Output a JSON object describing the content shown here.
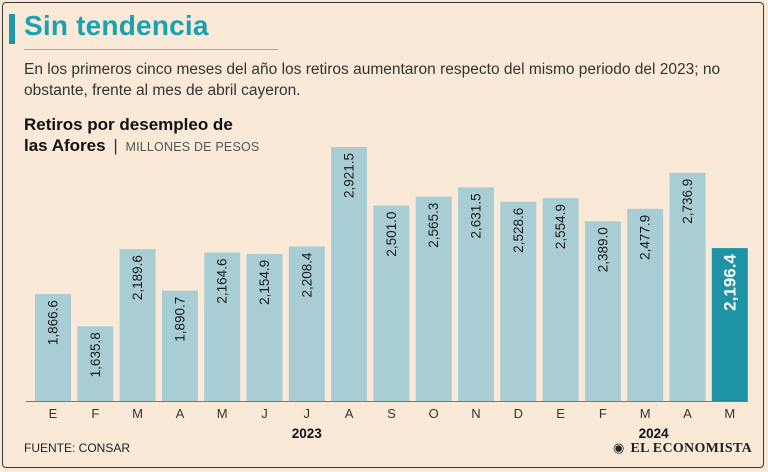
{
  "header": {
    "title": "Sin tendencia",
    "subtitle": "En los primeros cinco meses del año los retiros aumentaron respecto del mismo periodo del 2023; no obstante, frente al mes de abril cayeron."
  },
  "chart_heading": {
    "line1": "Retiros por desempleo de",
    "line2": "las Afores",
    "separator": "|",
    "units": "MILLONES DE PESOS"
  },
  "chart_data": {
    "type": "bar",
    "title": "Retiros por desempleo de las Afores",
    "ylabel": "Millones de pesos",
    "xlabel": "",
    "categories": [
      "E",
      "F",
      "M",
      "A",
      "M",
      "J",
      "J",
      "A",
      "S",
      "O",
      "N",
      "D",
      "E",
      "F",
      "M",
      "A",
      "M"
    ],
    "values": [
      1866.6,
      1635.8,
      2189.6,
      1890.7,
      2164.6,
      2154.9,
      2208.4,
      2921.5,
      2501.0,
      2565.3,
      2631.5,
      2528.6,
      2554.9,
      2389.0,
      2477.9,
      2736.9,
      2196.4
    ],
    "value_labels": [
      "1,866.6",
      "1,635.8",
      "2,189.6",
      "1,890.7",
      "2,164.6",
      "2,154.9",
      "2,208.4",
      "2,921.5",
      "2,501.0",
      "2,565.3",
      "2,631.5",
      "2,528.6",
      "2,554.9",
      "2,389.0",
      "2,477.9",
      "2,736.9",
      "2,196.4"
    ],
    "highlight_index": 16,
    "year_groups": [
      {
        "label": "2023",
        "start": 0,
        "end": 11
      },
      {
        "label": "2024",
        "start": 12,
        "end": 16
      }
    ],
    "ylim": [
      1100,
      2950
    ],
    "grid": false,
    "colors": {
      "bar": "#a9cdd4",
      "bar_highlight": "#1e93a6",
      "label_text": "#1a1a1a",
      "label_highlight": "#ffffff"
    }
  },
  "footer": {
    "source": "FUENTE: CONSAR",
    "brand_mark": "◉",
    "brand": "EL ECONOMISTA"
  }
}
